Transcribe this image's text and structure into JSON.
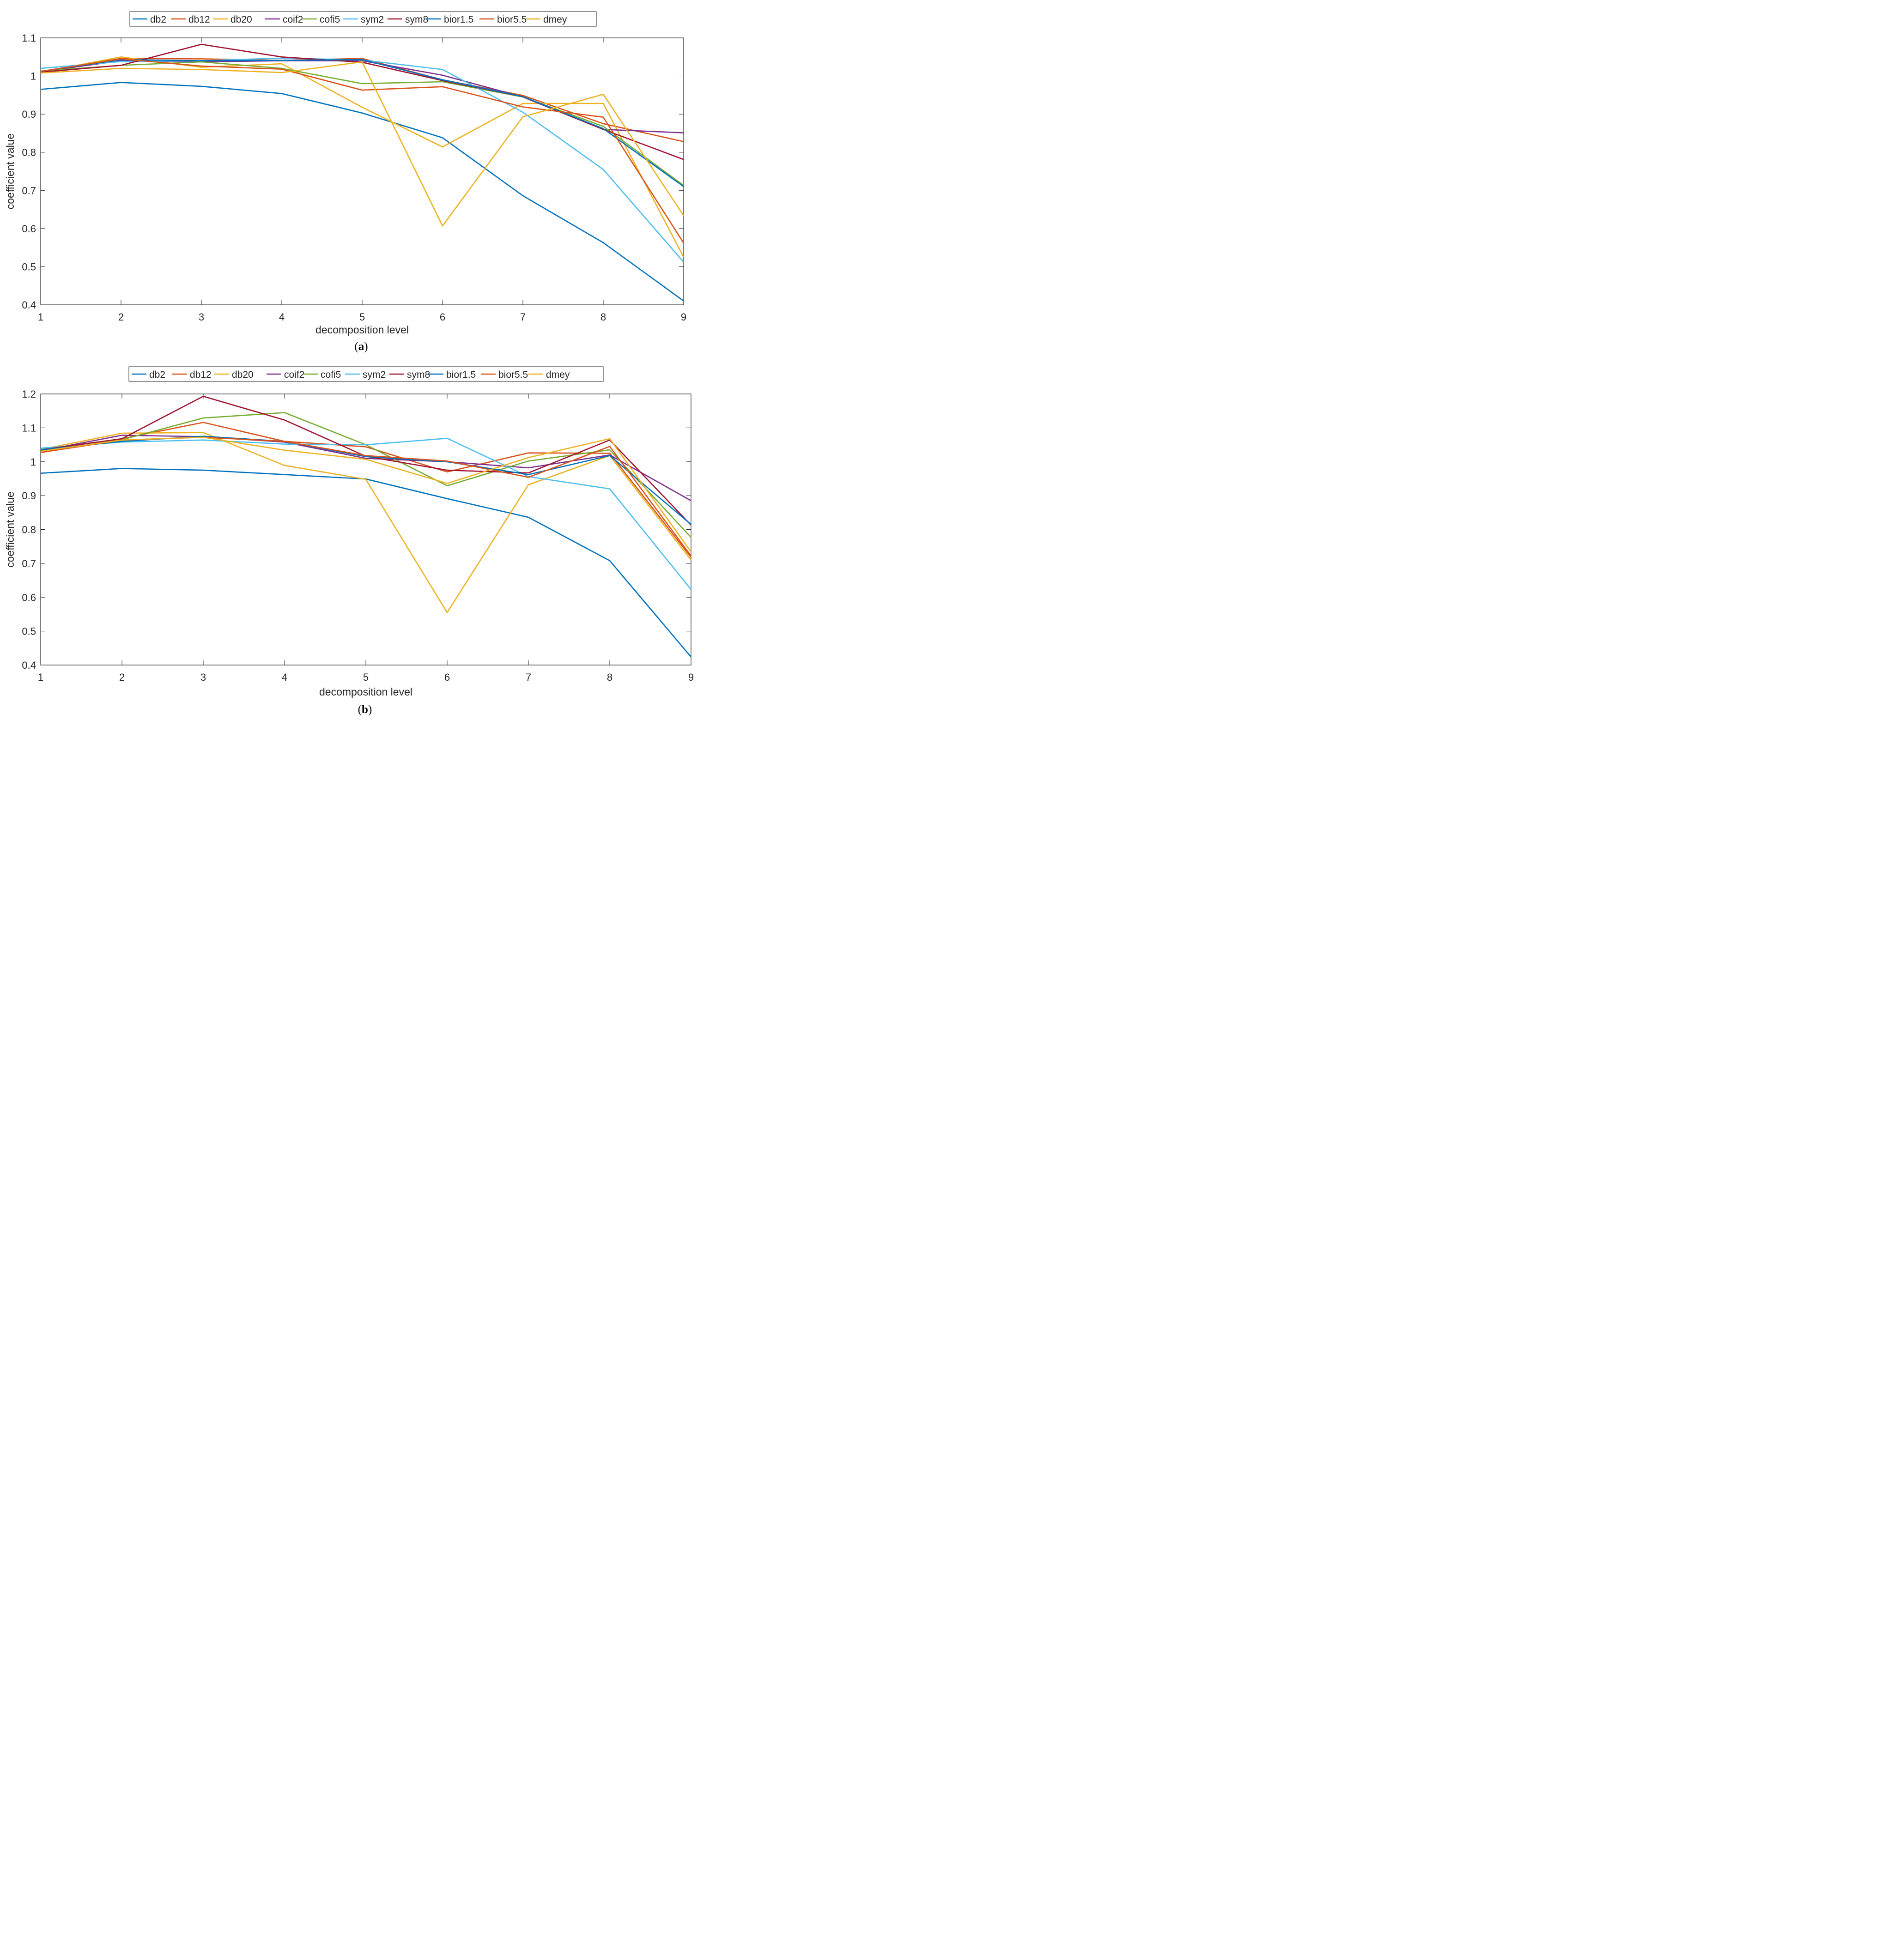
{
  "chart_data": [
    {
      "type": "line",
      "panel_label": "a",
      "xlabel": "decomposition level",
      "ylabel": "coefficient value",
      "x": [
        1,
        2,
        3,
        4,
        5,
        6,
        7,
        8,
        9
      ],
      "xlim": [
        1,
        9
      ],
      "ylim": [
        0.4,
        1.1
      ],
      "xticks": [
        "1",
        "2",
        "3",
        "4",
        "5",
        "6",
        "7",
        "8",
        "9"
      ],
      "yticks": [
        0.4,
        0.5,
        0.6,
        0.7,
        0.8,
        0.9,
        1,
        1.1
      ],
      "ytick_labels": [
        "0.4",
        "0.5",
        "0.6",
        "0.7",
        "0.8",
        "0.9",
        "1",
        "1.1"
      ],
      "legend_position": "top-center",
      "grid": false,
      "series": [
        {
          "name": "db2",
          "color": "#0072BD",
          "values": [
            0.965,
            0.983,
            0.973,
            0.954,
            0.903,
            0.838,
            0.686,
            0.563,
            0.41
          ]
        },
        {
          "name": "db12",
          "color": "#D95319",
          "values": [
            1.012,
            1.046,
            1.045,
            1.041,
            1.046,
            0.99,
            0.949,
            0.875,
            0.828
          ]
        },
        {
          "name": "db20",
          "color": "#EDB120",
          "values": [
            1.01,
            1.05,
            1.023,
            1.032,
            0.918,
            0.814,
            0.928,
            0.928,
            0.525
          ]
        },
        {
          "name": "coif2",
          "color": "#7E2F8E",
          "values": [
            1.011,
            1.04,
            1.037,
            1.04,
            1.04,
            1.002,
            0.945,
            0.86,
            0.851
          ]
        },
        {
          "name": "cofi5",
          "color": "#77AC30",
          "values": [
            1.013,
            1.028,
            1.037,
            1.02,
            0.98,
            0.985,
            0.945,
            0.868,
            0.713
          ]
        },
        {
          "name": "sym2",
          "color": "#4DBEEE",
          "values": [
            1.02,
            1.038,
            1.04,
            1.047,
            1.042,
            1.017,
            0.905,
            0.755,
            0.512
          ]
        },
        {
          "name": "sym8",
          "color": "#A2142F",
          "values": [
            1.01,
            1.028,
            1.083,
            1.05,
            1.036,
            0.988,
            0.946,
            0.86,
            0.781
          ]
        },
        {
          "name": "bior1.5",
          "color": "#0072BD",
          "values": [
            1.012,
            1.043,
            1.04,
            1.041,
            1.043,
            0.99,
            0.946,
            0.862,
            0.71
          ]
        },
        {
          "name": "bior5.5",
          "color": "#D95319",
          "values": [
            1.012,
            1.045,
            1.026,
            1.018,
            0.963,
            0.972,
            0.919,
            0.892,
            0.562
          ]
        },
        {
          "name": "dmey",
          "color": "#EDB120",
          "values": [
            1.008,
            1.02,
            1.017,
            1.009,
            1.037,
            0.607,
            0.893,
            0.952,
            0.634
          ]
        }
      ]
    },
    {
      "type": "line",
      "panel_label": "b",
      "xlabel": "decomposition level",
      "ylabel": "coefficient value",
      "x": [
        1,
        2,
        3,
        4,
        5,
        6,
        7,
        8,
        9
      ],
      "xlim": [
        1,
        9
      ],
      "ylim": [
        0.4,
        1.2
      ],
      "xticks": [
        "1",
        "2",
        "3",
        "4",
        "5",
        "6",
        "7",
        "8",
        "9"
      ],
      "yticks": [
        0.4,
        0.5,
        0.6,
        0.7,
        0.8,
        0.9,
        1,
        1.1,
        1.2
      ],
      "ytick_labels": [
        "0.4",
        "0.5",
        "0.6",
        "0.7",
        "0.8",
        "0.9",
        "1",
        "1.1",
        "1.2"
      ],
      "legend_position": "top-center",
      "grid": false,
      "series": [
        {
          "name": "db2",
          "color": "#0072BD",
          "values": [
            0.966,
            0.98,
            0.975,
            0.962,
            0.949,
            0.891,
            0.836,
            0.708,
            0.424
          ]
        },
        {
          "name": "db12",
          "color": "#D95319",
          "values": [
            1.027,
            1.068,
            1.116,
            1.06,
            1.044,
            0.97,
            1.026,
            1.025,
            0.718
          ]
        },
        {
          "name": "db20",
          "color": "#EDB120",
          "values": [
            1.036,
            1.084,
            1.086,
            0.989,
            0.948,
            0.555,
            0.932,
            1.018,
            0.71
          ]
        },
        {
          "name": "coif2",
          "color": "#7E2F8E",
          "values": [
            1.032,
            1.078,
            1.074,
            1.058,
            1.01,
            1.0,
            0.982,
            1.02,
            0.885
          ]
        },
        {
          "name": "cofi5",
          "color": "#77AC30",
          "values": [
            1.036,
            1.065,
            1.129,
            1.145,
            1.05,
            0.929,
            1.002,
            1.035,
            0.777
          ]
        },
        {
          "name": "sym2",
          "color": "#4DBEEE",
          "values": [
            1.04,
            1.058,
            1.064,
            1.052,
            1.05,
            1.069,
            0.956,
            0.92,
            0.623
          ]
        },
        {
          "name": "sym8",
          "color": "#A2142F",
          "values": [
            1.035,
            1.068,
            1.193,
            1.123,
            1.016,
            0.975,
            0.967,
            1.064,
            0.813
          ]
        },
        {
          "name": "bior1.5",
          "color": "#0072BD",
          "values": [
            1.035,
            1.06,
            1.075,
            1.06,
            1.015,
            1.0,
            0.962,
            1.018,
            0.815
          ]
        },
        {
          "name": "bior5.5",
          "color": "#D95319",
          "values": [
            1.027,
            1.064,
            1.072,
            1.06,
            1.018,
            1.002,
            0.954,
            1.045,
            0.722
          ]
        },
        {
          "name": "dmey",
          "color": "#EDB120",
          "values": [
            1.031,
            1.064,
            1.072,
            1.034,
            1.007,
            0.936,
            1.012,
            1.068,
            0.734
          ]
        }
      ]
    }
  ]
}
